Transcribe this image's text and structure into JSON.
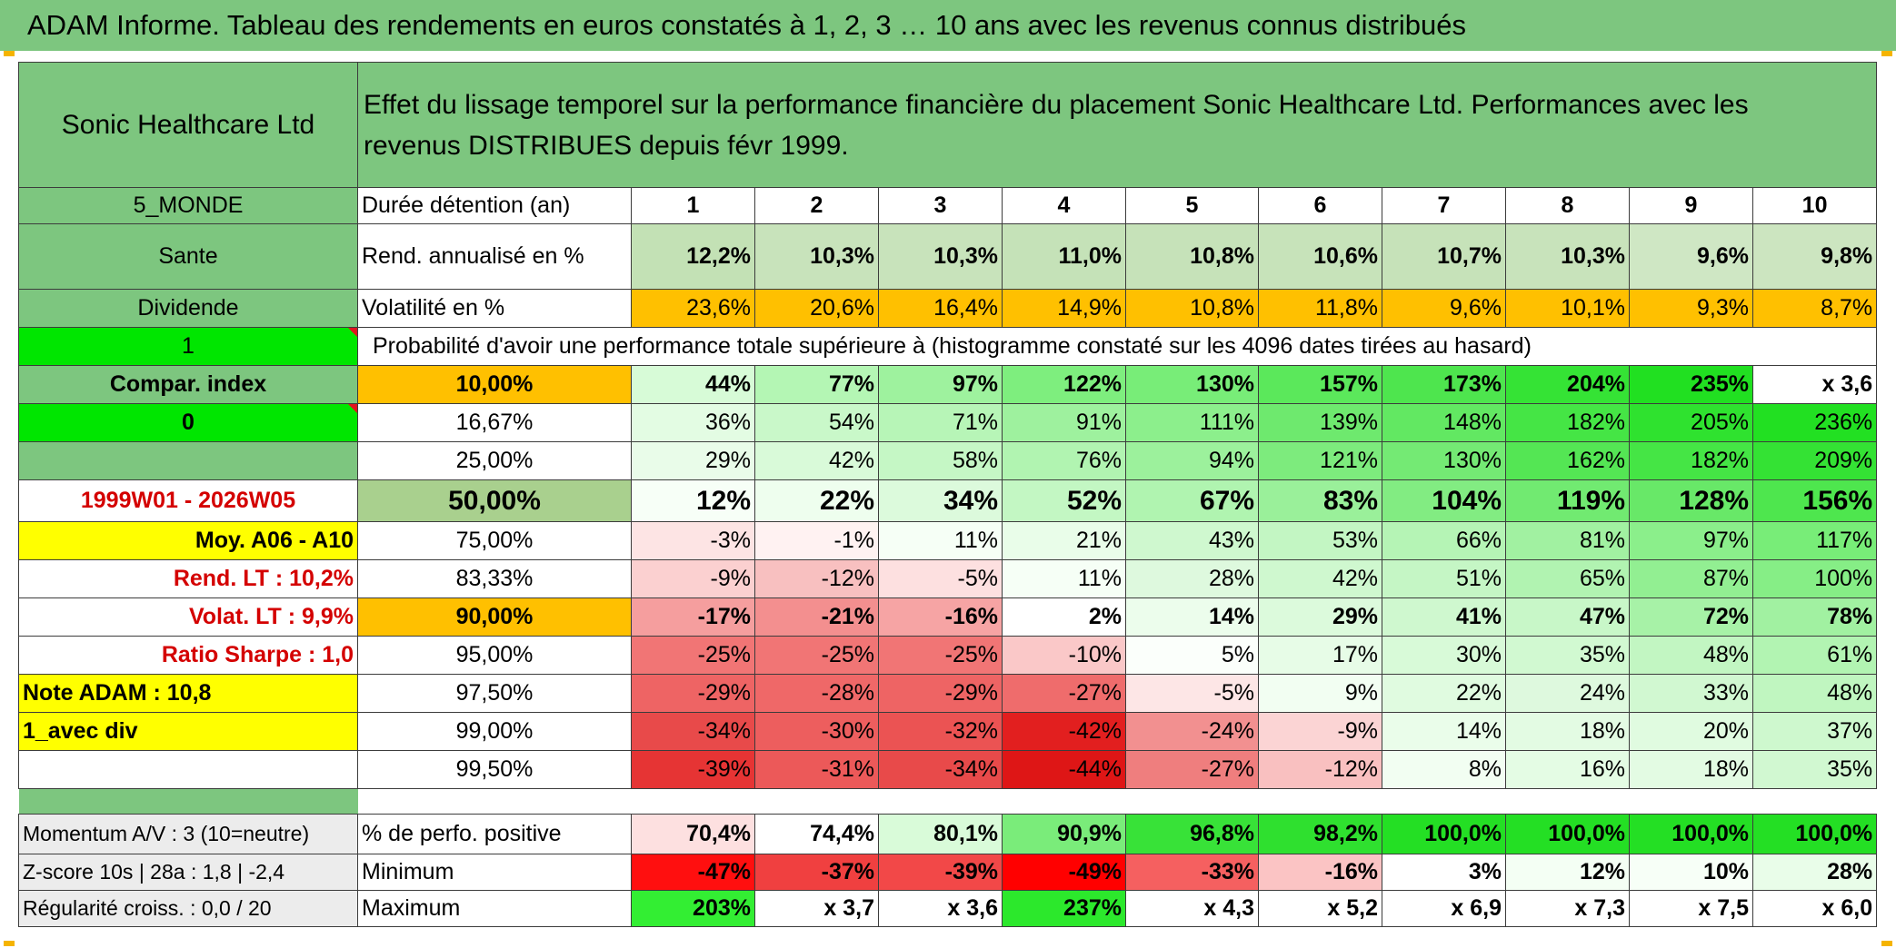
{
  "header": {
    "title": "ADAM Informe. Tableau des rendements en euros constatés à 1, 2, 3 … 10 ans avec les revenus connus distribués"
  },
  "colors": {
    "header_green": "#7dc67f",
    "accent_orange": "#ffc000",
    "highlight_yellow": "#ffff00",
    "bright_green": "#00ff00",
    "label_red": "#d40000"
  },
  "sidebar": {
    "fund_name": "Sonic Healthcare Ltd",
    "region": "5_MONDE",
    "sector": "Sante",
    "income_type": "Dividende",
    "flag_one": "1",
    "compare_index": "Compar. index",
    "flag_zero": "0",
    "period": "1999W01 - 2026W05",
    "avg_label": "Moy. A06 - A10",
    "rend_lt": "Rend. LT :   10,2%",
    "volat_lt": "Volat. LT :   9,9%",
    "sharpe": "Ratio Sharpe :   1,0",
    "note_adam": "Note ADAM : 10,8",
    "mode": "1_avec div",
    "momentum": "Momentum A/V : 3 (10=neutre)",
    "zscore": "Z-score 10s | 28a : 1,8 | -2,4",
    "regularite": "Régularité croiss. : 0,0 / 20"
  },
  "description": "Effet du lissage temporel sur la performance financière du placement Sonic Healthcare Ltd. Performances avec les revenus DISTRIBUES depuis févr 1999.",
  "labels": {
    "duree": "Durée détention (an)",
    "rend": "Rend. annualisé en %",
    "vol": "Volatilité en %",
    "prob_title": "Probabilité d'avoir une performance totale supérieure à (histogramme constaté sur les 4096 dates tirées au hasard)",
    "pos": "% de perfo. positive",
    "min": "Minimum",
    "max": "Maximum"
  },
  "years": [
    "1",
    "2",
    "3",
    "4",
    "5",
    "6",
    "7",
    "8",
    "9",
    "10"
  ],
  "rend": [
    "12,2%",
    "10,3%",
    "10,3%",
    "11,0%",
    "10,8%",
    "10,6%",
    "10,7%",
    "10,3%",
    "9,6%",
    "9,8%"
  ],
  "vol": [
    "23,6%",
    "20,6%",
    "16,4%",
    "14,9%",
    "10,8%",
    "11,8%",
    "9,6%",
    "10,1%",
    "9,3%",
    "8,7%"
  ],
  "prob_rows": [
    {
      "threshold": "10,00%",
      "values": [
        "44%",
        "77%",
        "97%",
        "122%",
        "130%",
        "157%",
        "173%",
        "204%",
        "235%",
        "x 3,6"
      ]
    },
    {
      "threshold": "16,67%",
      "values": [
        "36%",
        "54%",
        "71%",
        "91%",
        "111%",
        "139%",
        "148%",
        "182%",
        "205%",
        "236%"
      ]
    },
    {
      "threshold": "25,00%",
      "values": [
        "29%",
        "42%",
        "58%",
        "76%",
        "94%",
        "121%",
        "130%",
        "162%",
        "182%",
        "209%"
      ]
    },
    {
      "threshold": "50,00%",
      "values": [
        "12%",
        "22%",
        "34%",
        "52%",
        "67%",
        "83%",
        "104%",
        "119%",
        "128%",
        "156%"
      ]
    },
    {
      "threshold": "75,00%",
      "values": [
        "-3%",
        "-1%",
        "11%",
        "21%",
        "43%",
        "53%",
        "66%",
        "81%",
        "97%",
        "117%"
      ]
    },
    {
      "threshold": "83,33%",
      "values": [
        "-9%",
        "-12%",
        "-5%",
        "11%",
        "28%",
        "42%",
        "51%",
        "65%",
        "87%",
        "100%"
      ]
    },
    {
      "threshold": "90,00%",
      "values": [
        "-17%",
        "-21%",
        "-16%",
        "2%",
        "14%",
        "29%",
        "41%",
        "47%",
        "72%",
        "78%"
      ]
    },
    {
      "threshold": "95,00%",
      "values": [
        "-25%",
        "-25%",
        "-25%",
        "-10%",
        "5%",
        "17%",
        "30%",
        "35%",
        "48%",
        "61%"
      ]
    },
    {
      "threshold": "97,50%",
      "values": [
        "-29%",
        "-28%",
        "-29%",
        "-27%",
        "-5%",
        "9%",
        "22%",
        "24%",
        "33%",
        "48%"
      ]
    },
    {
      "threshold": "99,00%",
      "values": [
        "-34%",
        "-30%",
        "-32%",
        "-42%",
        "-24%",
        "-9%",
        "14%",
        "18%",
        "20%",
        "37%"
      ]
    },
    {
      "threshold": "99,50%",
      "values": [
        "-39%",
        "-31%",
        "-34%",
        "-44%",
        "-27%",
        "-12%",
        "8%",
        "16%",
        "18%",
        "35%"
      ]
    }
  ],
  "pos": [
    "70,4%",
    "74,4%",
    "80,1%",
    "90,9%",
    "96,8%",
    "98,2%",
    "100,0%",
    "100,0%",
    "100,0%",
    "100,0%"
  ],
  "min": [
    "-47%",
    "-37%",
    "-39%",
    "-49%",
    "-33%",
    "-16%",
    "3%",
    "12%",
    "10%",
    "28%"
  ],
  "max": [
    "203%",
    "x 3,7",
    "x 3,6",
    "237%",
    "x 4,3",
    "x 5,2",
    "x 6,9",
    "x 7,3",
    "x 7,5",
    "x 6,0"
  ],
  "cell_colors": {
    "rend": [
      "#c3e1b5",
      "#c8e3bb",
      "#c8e3bb",
      "#c5e2b8",
      "#c6e2b9",
      "#c7e3ba",
      "#c6e2b9",
      "#c8e3bb",
      "#cfe7c4",
      "#cce5c0"
    ],
    "vol": [
      "#ffc000",
      "#ffc000",
      "#ffc000",
      "#ffc000",
      "#ffc000",
      "#ffc000",
      "#ffc000",
      "#ffc000",
      "#ffc000",
      "#ffc000"
    ],
    "prob": [
      [
        "#d7fbd7",
        "#b4f6b4",
        "#9ef29e",
        "#7eee7e",
        "#78ed78",
        "#5be85b",
        "#4ee54e",
        "#35e335",
        "#21e021",
        "#ffffff"
      ],
      [
        "#e3fce3",
        "#c9f8c9",
        "#b7f5b7",
        "#9ef19e",
        "#8cef8c",
        "#6ee96e",
        "#62e862",
        "#45e545",
        "#2fe22f",
        "#22e022"
      ],
      [
        "#e9fce9",
        "#d9fad9",
        "#c5f7c5",
        "#b1f4b1",
        "#9cf19c",
        "#7deb7d",
        "#74ea74",
        "#54e654",
        "#45e545",
        "#34e234"
      ],
      [
        "#f7fff7",
        "#eefeee",
        "#dcfadc",
        "#c3f7c3",
        "#b0f4b0",
        "#9af09a",
        "#82ec82",
        "#71ea71",
        "#68e868",
        "#4ee64e"
      ],
      [
        "#fde4e4",
        "#fff2f2",
        "#f6fff6",
        "#e9fde9",
        "#cff8cf",
        "#c3f6c3",
        "#b5f4b5",
        "#a1f1a1",
        "#8bef8b",
        "#78ed78"
      ],
      [
        "#fbd0d0",
        "#f8c0c0",
        "#fde0e0",
        "#f6fff6",
        "#def9de",
        "#cff8cf",
        "#c5f6c5",
        "#b1f3b1",
        "#92ef92",
        "#86ee86"
      ],
      [
        "#f59e9e",
        "#f38f8f",
        "#f6a4a4",
        "#ffffff",
        "#ecfdec",
        "#dcfadc",
        "#cff8cf",
        "#c8f7c8",
        "#a7f2a7",
        "#a1f1a1"
      ],
      [
        "#f17575",
        "#f17575",
        "#f17575",
        "#fac8c8",
        "#fbfffb",
        "#e7fce7",
        "#d8fad8",
        "#d1f9d1",
        "#c2f6c2",
        "#b2f4b2"
      ],
      [
        "#ee6464",
        "#ef6868",
        "#ee6464",
        "#ef6c6c",
        "#fde6e6",
        "#f2fef2",
        "#e0fbe0",
        "#def9de",
        "#d1f8d1",
        "#c0f6c0"
      ],
      [
        "#e84a4a",
        "#ed5e5e",
        "#eb5353",
        "#e21f1f",
        "#f29090",
        "#fbd4d4",
        "#eafdea",
        "#e3fbe3",
        "#e0fbe0",
        "#cef8ce"
      ],
      [
        "#e63434",
        "#ec5959",
        "#e84a4a",
        "#de1616",
        "#ef7e7e",
        "#f9c0c0",
        "#f2fef2",
        "#e4fce4",
        "#e3fbe3",
        "#d1f8d1"
      ]
    ],
    "pos": [
      "#fde0e0",
      "#ffffff",
      "#d9fbd9",
      "#7aec7a",
      "#38e238",
      "#2fe02f",
      "#24df24",
      "#24df24",
      "#24df24",
      "#24df24"
    ],
    "min": [
      "#ff0f0f",
      "#f04040",
      "#f24848",
      "#ff0000",
      "#f56060",
      "#fbc4c4",
      "#ffffff",
      "#f4fff4",
      "#f7fff7",
      "#e9fde9"
    ],
    "max": [
      "#33ee33",
      "#ffffff",
      "#ffffff",
      "#2ce82c",
      "#ffffff",
      "#ffffff",
      "#ffffff",
      "#ffffff",
      "#ffffff",
      "#ffffff"
    ]
  }
}
